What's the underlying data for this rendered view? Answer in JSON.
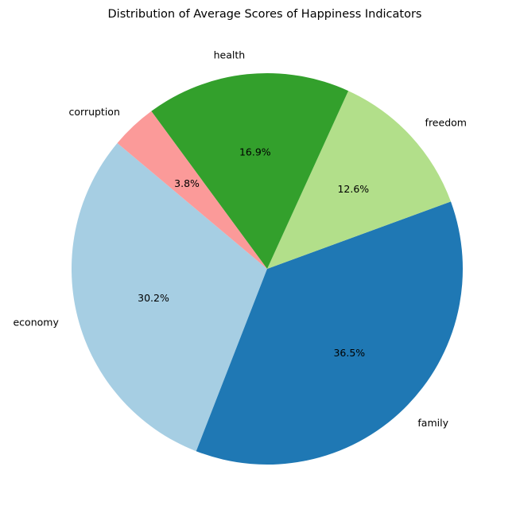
{
  "chart_data": {
    "type": "pie",
    "title": "Distribution of Average Scores of Happiness Indicators",
    "start_angle_deg": 140,
    "direction": "counterclockwise",
    "legend": "none",
    "slices": [
      {
        "label": "economy",
        "value": 30.2,
        "pct_label": "30.2%",
        "color": "#a6cee3"
      },
      {
        "label": "family",
        "value": 36.5,
        "pct_label": "36.5%",
        "color": "#1f78b4"
      },
      {
        "label": "freedom",
        "value": 12.6,
        "pct_label": "12.6%",
        "color": "#b2df8a"
      },
      {
        "label": "health",
        "value": 16.9,
        "pct_label": "16.9%",
        "color": "#33a02c"
      },
      {
        "label": "corruption",
        "value": 3.8,
        "pct_label": "3.8%",
        "color": "#fb9a99"
      }
    ]
  }
}
